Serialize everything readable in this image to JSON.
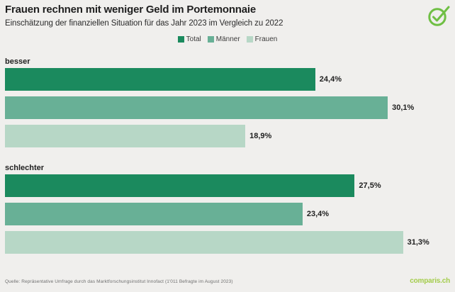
{
  "header": {
    "title": "Frauen rechnen mit weniger Geld im Portemonnaie",
    "subtitle": "Einschätzung der finanziellen Situation für das Jahr 2023 im Vergleich zu 2022",
    "logo_icon": "check-circle-icon"
  },
  "chart_data": {
    "type": "bar",
    "orientation": "horizontal",
    "title": "Frauen rechnen mit weniger Geld im Portemonnaie",
    "subtitle": "Einschätzung der finanziellen Situation für das Jahr 2023 im Vergleich zu 2022",
    "categories": [
      "besser",
      "schlechter"
    ],
    "series": [
      {
        "name": "Total",
        "color": "#1b8a5e",
        "values": [
          24.4,
          27.5
        ],
        "labels": [
          "24,4%",
          "27,5%"
        ]
      },
      {
        "name": "Männer",
        "color": "#68b096",
        "values": [
          30.1,
          23.4
        ],
        "labels": [
          "30,1%",
          "23,4%"
        ]
      },
      {
        "name": "Frauen",
        "color": "#b7d7c6",
        "values": [
          18.9,
          31.3
        ],
        "labels": [
          "18,9%",
          "31,3%"
        ]
      }
    ],
    "xlim": [
      0,
      35
    ],
    "grid": false,
    "legend_position": "top-center"
  },
  "colors": {
    "background": "#f0efed",
    "brand_check_green": "#6fbf44",
    "logo_text_green": "#a3cc4a",
    "text_dark": "#1f1f1f",
    "text_muted": "#707070"
  },
  "footer": {
    "source": "Quelle: Repräsentative Umfrage durch das Marktforschungsinstitut Innofact (1'011 Befragte im August 2023)",
    "logo_text": "comparis.ch"
  }
}
